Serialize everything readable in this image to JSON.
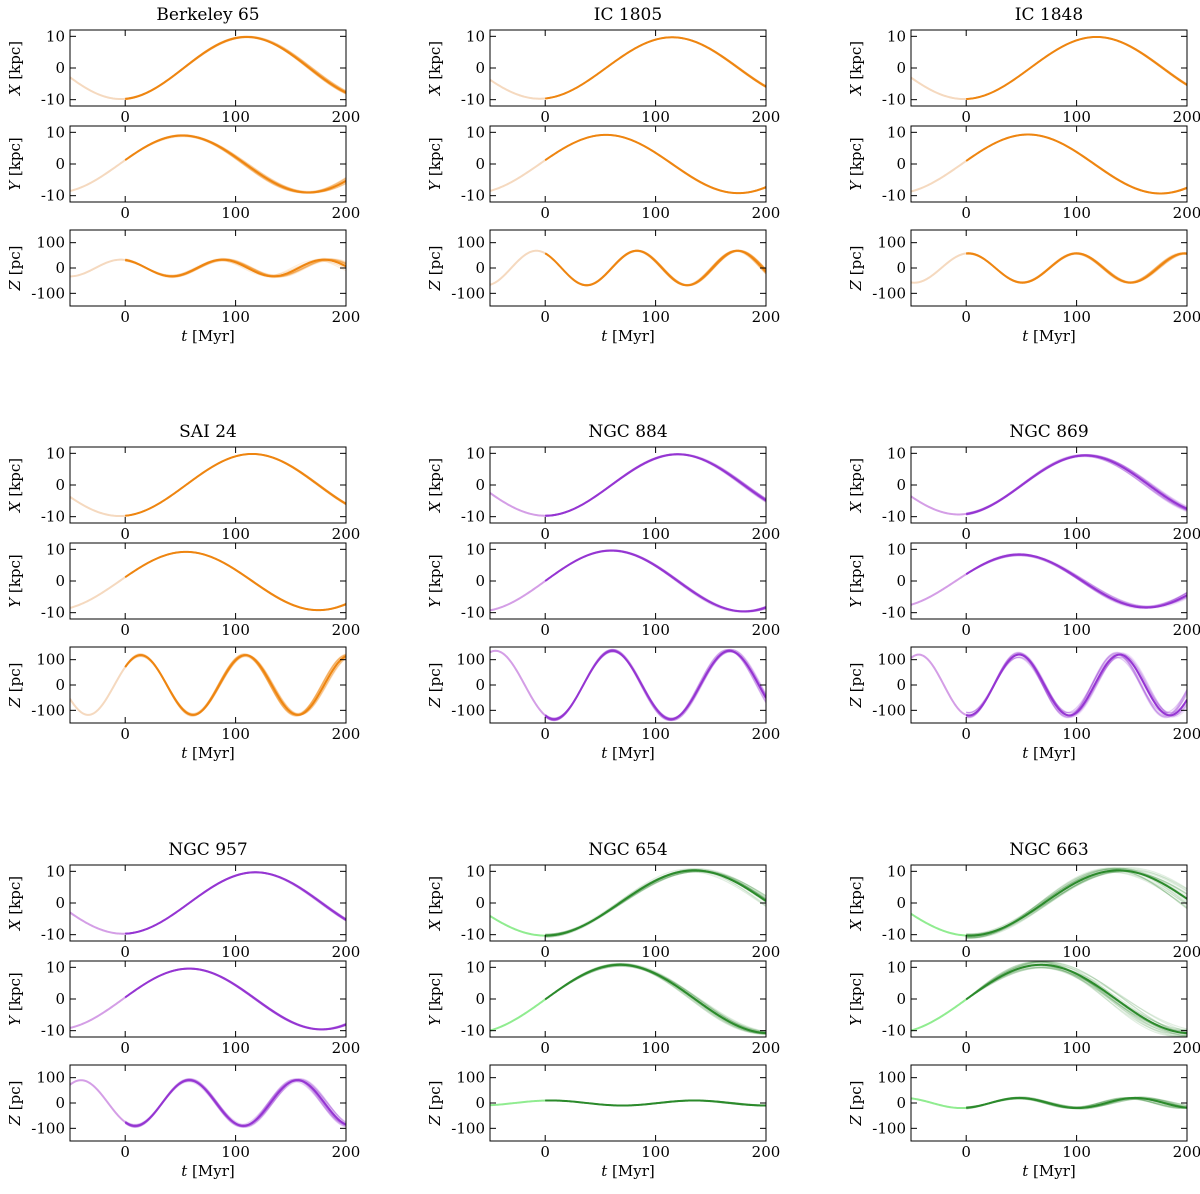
{
  "figure": {
    "colors": {
      "orange": "#ee8510",
      "orange_past": "#f5d9bf",
      "purple": "#9535d2",
      "purple_past": "#d49ee6",
      "green": "#2b8a2b",
      "green_past": "#90ec90"
    },
    "axis_labels": {
      "x": "X [kpc]",
      "y": "Y [kpc]",
      "z": "Z [pc]",
      "t": "t [Myr]"
    },
    "t_ticks": [
      0,
      100,
      200
    ],
    "xy_ticks": [
      10,
      0,
      -10
    ],
    "z_ticks": [
      100,
      0,
      -100
    ]
  },
  "chart_data": [
    {
      "type": "line",
      "title": "Berkeley 65",
      "color_key": "orange",
      "t_range": [
        -50,
        200
      ],
      "panels": [
        {
          "name": "X",
          "ylabel": "X [kpc]",
          "ylim": [
            -12,
            12
          ],
          "amp": 9.8,
          "period": 228,
          "phase_t": 110,
          "spread": 0.25
        },
        {
          "name": "Y",
          "ylabel": "Y [kpc]",
          "ylim": [
            -12,
            12
          ],
          "amp": 9,
          "period": 228,
          "phase_t": 52,
          "spread": 0.35
        },
        {
          "name": "Z",
          "ylabel": "Z [pc]",
          "ylim": [
            -150,
            150
          ],
          "amp": 33,
          "period": 92,
          "phase_t": 88,
          "spread": 5
        }
      ]
    },
    {
      "type": "line",
      "title": "IC 1805",
      "color_key": "orange",
      "t_range": [
        -50,
        200
      ],
      "panels": [
        {
          "name": "X",
          "ylabel": "X [kpc]",
          "ylim": [
            -12,
            12
          ],
          "amp": 9.7,
          "period": 240,
          "phase_t": 115,
          "spread": 0.1
        },
        {
          "name": "Y",
          "ylabel": "Y [kpc]",
          "ylim": [
            -12,
            12
          ],
          "amp": 9.2,
          "period": 240,
          "phase_t": 55,
          "spread": 0.1
        },
        {
          "name": "Z",
          "ylabel": "Z [pc]",
          "ylim": [
            -150,
            150
          ],
          "amp": 68,
          "period": 91,
          "phase_t": 83,
          "spread": 3
        }
      ]
    },
    {
      "type": "line",
      "title": "IC 1848",
      "color_key": "orange",
      "t_range": [
        -50,
        200
      ],
      "panels": [
        {
          "name": "X",
          "ylabel": "X [kpc]",
          "ylim": [
            -12,
            12
          ],
          "amp": 9.8,
          "period": 240,
          "phase_t": 118,
          "spread": 0.1
        },
        {
          "name": "Y",
          "ylabel": "Y [kpc]",
          "ylim": [
            -12,
            12
          ],
          "amp": 9.3,
          "period": 240,
          "phase_t": 56,
          "spread": 0.1
        },
        {
          "name": "Z",
          "ylabel": "Z [pc]",
          "ylim": [
            -150,
            150
          ],
          "amp": 58,
          "period": 98,
          "phase_t": 100,
          "spread": 3
        }
      ]
    },
    {
      "type": "line",
      "title": "SAI 24",
      "color_key": "orange",
      "t_range": [
        -50,
        200
      ],
      "panels": [
        {
          "name": "X",
          "ylabel": "X [kpc]",
          "ylim": [
            -12,
            12
          ],
          "amp": 9.8,
          "period": 240,
          "phase_t": 115,
          "spread": 0.1
        },
        {
          "name": "Y",
          "ylabel": "Y [kpc]",
          "ylim": [
            -12,
            12
          ],
          "amp": 9.2,
          "period": 240,
          "phase_t": 55,
          "spread": 0.1
        },
        {
          "name": "Z",
          "ylabel": "Z [pc]",
          "ylim": [
            -150,
            150
          ],
          "amp": 118,
          "period": 95,
          "phase_t": 14,
          "spread": 6
        }
      ]
    },
    {
      "type": "line",
      "title": "NGC 884",
      "color_key": "purple",
      "t_range": [
        -50,
        200
      ],
      "panels": [
        {
          "name": "X",
          "ylabel": "X [kpc]",
          "ylim": [
            -12,
            12
          ],
          "amp": 9.7,
          "period": 240,
          "phase_t": 120,
          "spread": 0.2
        },
        {
          "name": "Y",
          "ylabel": "Y [kpc]",
          "ylim": [
            -12,
            12
          ],
          "amp": 9.6,
          "period": 240,
          "phase_t": 60,
          "spread": 0.2
        },
        {
          "name": "Z",
          "ylabel": "Z [pc]",
          "ylim": [
            -150,
            150
          ],
          "amp": 135,
          "period": 106,
          "phase_t": 61,
          "spread": 6
        }
      ]
    },
    {
      "type": "line",
      "title": "NGC 869",
      "color_key": "purple",
      "t_range": [
        -50,
        200
      ],
      "panels": [
        {
          "name": "X",
          "ylabel": "X [kpc]",
          "ylim": [
            -12,
            12
          ],
          "amp": 9.3,
          "period": 230,
          "phase_t": 108,
          "spread": 0.35
        },
        {
          "name": "Y",
          "ylabel": "Y [kpc]",
          "ylim": [
            -12,
            12
          ],
          "amp": 8.4,
          "period": 230,
          "phase_t": 48,
          "spread": 0.4
        },
        {
          "name": "Z",
          "ylabel": "Z [pc]",
          "ylim": [
            -150,
            150
          ],
          "amp": 120,
          "period": 91,
          "phase_t": 48,
          "spread": 12
        }
      ]
    },
    {
      "type": "line",
      "title": "NGC 957",
      "color_key": "purple",
      "t_range": [
        -50,
        200
      ],
      "panels": [
        {
          "name": "X",
          "ylabel": "X [kpc]",
          "ylim": [
            -12,
            12
          ],
          "amp": 9.7,
          "period": 240,
          "phase_t": 118,
          "spread": 0.15
        },
        {
          "name": "Y",
          "ylabel": "Y [kpc]",
          "ylim": [
            -12,
            12
          ],
          "amp": 9.6,
          "period": 240,
          "phase_t": 58,
          "spread": 0.15
        },
        {
          "name": "Z",
          "ylabel": "Z [pc]",
          "ylim": [
            -150,
            150
          ],
          "amp": 90,
          "period": 98,
          "phase_t": 58,
          "spread": 6
        }
      ]
    },
    {
      "type": "line",
      "title": "NGC 654",
      "color_key": "green",
      "t_range": [
        -50,
        200
      ],
      "panels": [
        {
          "name": "X",
          "ylabel": "X [kpc]",
          "ylim": [
            -12,
            12
          ],
          "amp": 10.3,
          "period": 270,
          "phase_t": 135,
          "spread": 0.5
        },
        {
          "name": "Y",
          "ylabel": "Y [kpc]",
          "ylim": [
            -12,
            12
          ],
          "amp": 10.8,
          "period": 270,
          "phase_t": 68,
          "spread": 0.5
        },
        {
          "name": "Z",
          "ylabel": "Z [pc]",
          "ylim": [
            -150,
            150
          ],
          "amp": 10,
          "period": 130,
          "phase_t": 135,
          "spread": 1
        }
      ]
    },
    {
      "type": "line",
      "title": "NGC 663",
      "color_key": "green",
      "t_range": [
        -50,
        200
      ],
      "panels": [
        {
          "name": "X",
          "ylabel": "X [kpc]",
          "ylim": [
            -12,
            12
          ],
          "amp": 10.3,
          "period": 270,
          "phase_t": 138,
          "spread": 0.9
        },
        {
          "name": "Y",
          "ylabel": "Y [kpc]",
          "ylim": [
            -12,
            12
          ],
          "amp": 10.8,
          "period": 270,
          "phase_t": 68,
          "spread": 1.1
        },
        {
          "name": "Z",
          "ylabel": "Z [pc]",
          "ylim": [
            -150,
            150
          ],
          "amp": 20,
          "period": 105,
          "phase_t": 48,
          "spread": 4
        }
      ]
    }
  ]
}
